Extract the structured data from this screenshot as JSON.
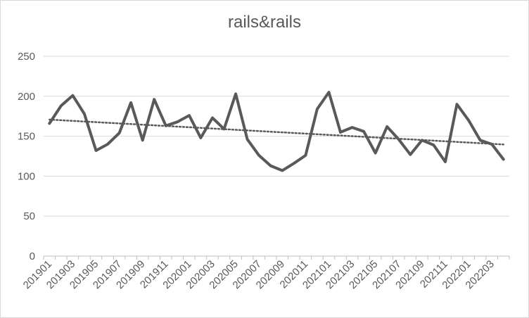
{
  "chart_data": {
    "type": "line",
    "title": "rails&rails",
    "xlabel": "",
    "ylabel": "",
    "ylim": [
      0,
      250
    ],
    "yticks": [
      "0",
      "50",
      "100",
      "150",
      "200",
      "250"
    ],
    "grid": true,
    "legend": "none",
    "trendline": "linear",
    "line_color": "#595959",
    "categories": [
      "201901",
      "201902",
      "201903",
      "201904",
      "201905",
      "201906",
      "201907",
      "201908",
      "201909",
      "201910",
      "201911",
      "201912",
      "202001",
      "202002",
      "202003",
      "202004",
      "202005",
      "202006",
      "202007",
      "202008",
      "202009",
      "202010",
      "202011",
      "202012",
      "202101",
      "202102",
      "202103",
      "202104",
      "202105",
      "202106",
      "202107",
      "202108",
      "202109",
      "202110",
      "202111",
      "202112",
      "202201",
      "202202",
      "202203",
      "202204"
    ],
    "xtick_labels": [
      "201901",
      "201903",
      "201905",
      "201907",
      "201909",
      "201911",
      "202001",
      "202003",
      "202005",
      "202007",
      "202009",
      "202011",
      "202101",
      "202103",
      "202105",
      "202107",
      "202109",
      "202111",
      "202201",
      "202203"
    ],
    "series": [
      {
        "values": [
          166,
          188,
          201,
          178,
          132,
          140,
          154,
          192,
          145,
          196,
          163,
          168,
          176,
          148,
          173,
          159,
          203,
          146,
          126,
          113,
          107,
          116,
          126,
          184,
          205,
          155,
          161,
          156,
          129,
          162,
          146,
          127,
          145,
          139,
          118,
          190,
          170,
          145,
          140,
          121
        ]
      }
    ]
  }
}
